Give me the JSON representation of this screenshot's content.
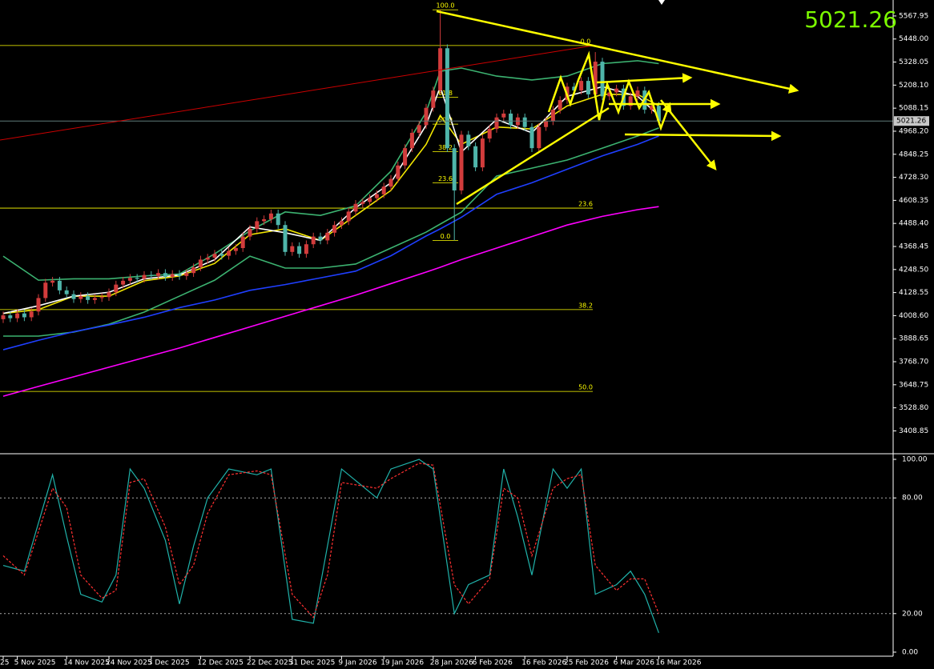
{
  "chart_data": {
    "type": "candlestick",
    "categories": [
      "25",
      null,
      "5 Nov 2025",
      null,
      null,
      null,
      null,
      null,
      null,
      "14 Nov 2025",
      null,
      null,
      null,
      null,
      null,
      "24 Nov 2025",
      null,
      null,
      null,
      null,
      null,
      "3 Dec 2025",
      null,
      null,
      null,
      null,
      null,
      null,
      "12 Dec 2025",
      null,
      null,
      null,
      null,
      null,
      null,
      "22 Dec 2025",
      null,
      null,
      null,
      null,
      null,
      "31 Dec 2025",
      null,
      null,
      null,
      null,
      null,
      null,
      "9 Jan 2026",
      null,
      null,
      null,
      null,
      null,
      "19 Jan 2026",
      null,
      null,
      null,
      null,
      null,
      null,
      "28 Jan 2026",
      null,
      null,
      null,
      null,
      null,
      "6 Feb 2026",
      null,
      null,
      null,
      null,
      null,
      null,
      "16 Feb 2026",
      null,
      null,
      null,
      null,
      null,
      "25 Feb 2026",
      null,
      null,
      null,
      null,
      null,
      null,
      "6 Mar 2026",
      null,
      null,
      null,
      null,
      null,
      "16 Mar 2026"
    ],
    "candles": {
      "up_color": "#d23c3c",
      "down_color": "#4fb5aa",
      "open": [
        3990,
        4010,
        3995,
        4020,
        4000,
        4030,
        4100,
        4180,
        4190,
        4140,
        4120,
        4095,
        4110,
        4090,
        4100,
        4105,
        4130,
        4170,
        4190,
        4205,
        4200,
        4220,
        4215,
        4230,
        4210,
        4225,
        4215,
        4230,
        4260,
        4300,
        4310,
        4330,
        4320,
        4345,
        4360,
        4420,
        4460,
        4500,
        4510,
        4540,
        4480,
        4340,
        4370,
        4330,
        4380,
        4420,
        4400,
        4440,
        4480,
        4500,
        4550,
        4590,
        4600,
        4620,
        4640,
        4680,
        4720,
        4790,
        4880,
        4960,
        5000,
        5090,
        5180,
        5400,
        4880,
        4660,
        4950,
        4890,
        4780,
        4930,
        4980,
        5040,
        5060,
        5000,
        5040,
        4990,
        4880,
        4990,
        5020,
        5080,
        5130,
        5200,
        5180,
        5230,
        5160,
        5330,
        5150,
        5170,
        5190,
        5100,
        5150,
        5180,
        5080,
        5100
      ],
      "high": [
        4030,
        4030,
        4040,
        4040,
        4050,
        4120,
        4200,
        4210,
        4210,
        4160,
        4140,
        4130,
        4130,
        4120,
        4125,
        4150,
        4190,
        4210,
        4225,
        4225,
        4240,
        4240,
        4250,
        4250,
        4245,
        4245,
        4250,
        4280,
        4320,
        4330,
        4350,
        4350,
        4365,
        4380,
        4440,
        4480,
        4520,
        4530,
        4560,
        4560,
        4500,
        4390,
        4390,
        4400,
        4440,
        4440,
        4460,
        4500,
        4520,
        4570,
        4610,
        4620,
        4640,
        4660,
        4700,
        4740,
        4810,
        4900,
        4980,
        5020,
        5110,
        5200,
        5600,
        5420,
        4900,
        4970,
        4970,
        4910,
        4950,
        5000,
        5060,
        5080,
        5080,
        5060,
        5060,
        5010,
        5010,
        5040,
        5100,
        5150,
        5220,
        5220,
        5250,
        5250,
        5380,
        5350,
        5190,
        5210,
        5210,
        5170,
        5200,
        5200,
        5120,
        5120
      ],
      "low": [
        3970,
        3975,
        3975,
        3980,
        3980,
        4010,
        4080,
        4160,
        4120,
        4100,
        4075,
        4075,
        4070,
        4070,
        4080,
        4085,
        4110,
        4150,
        4170,
        4180,
        4180,
        4195,
        4195,
        4190,
        4190,
        4195,
        4195,
        4210,
        4240,
        4280,
        4290,
        4300,
        4300,
        4325,
        4340,
        4400,
        4440,
        4480,
        4490,
        4460,
        4320,
        4320,
        4310,
        4310,
        4360,
        4380,
        4380,
        4420,
        4460,
        4480,
        4530,
        4570,
        4580,
        4600,
        4620,
        4660,
        4700,
        4770,
        4860,
        4940,
        4980,
        5070,
        5160,
        4860,
        4400,
        4640,
        4870,
        4760,
        4760,
        4910,
        4960,
        5020,
        4980,
        4980,
        4970,
        4860,
        4860,
        4970,
        5000,
        5060,
        5110,
        5160,
        5160,
        5140,
        5140,
        5130,
        5130,
        5150,
        5080,
        5080,
        5130,
        5060,
        5060,
        5000
      ],
      "close": [
        4010,
        3995,
        4020,
        4000,
        4030,
        4100,
        4180,
        4190,
        4140,
        4120,
        4095,
        4110,
        4090,
        4100,
        4105,
        4130,
        4170,
        4190,
        4205,
        4200,
        4220,
        4215,
        4230,
        4210,
        4225,
        4215,
        4230,
        4260,
        4300,
        4310,
        4330,
        4320,
        4345,
        4360,
        4420,
        4460,
        4500,
        4510,
        4540,
        4480,
        4340,
        4370,
        4330,
        4380,
        4420,
        4400,
        4440,
        4480,
        4500,
        4550,
        4590,
        4600,
        4620,
        4640,
        4680,
        4720,
        4790,
        4880,
        4960,
        5000,
        5090,
        5180,
        5400,
        4880,
        4660,
        4950,
        4890,
        4780,
        4930,
        4980,
        5040,
        5060,
        5000,
        5040,
        4990,
        4880,
        4990,
        5020,
        5080,
        5130,
        5200,
        5180,
        5230,
        5160,
        5330,
        5150,
        5170,
        5190,
        5100,
        5150,
        5180,
        5080,
        5100,
        5021.26
      ]
    },
    "ylim": [
      3294,
      5651
    ],
    "yticks": [
      5567.95,
      {
        "value": 5448,
        "label": "5448.00"
      },
      5328.05,
      {
        "value": 5208.1,
        "label": "5208.10"
      },
      5088.15,
      {
        "value": 4968.2,
        "label": "4968.20"
      },
      4848.25,
      {
        "value": 4728.3,
        "label": "4728.30"
      },
      4608.35,
      {
        "value": 4488.4,
        "label": "4488.40"
      },
      4368.45,
      {
        "value": 4248.5,
        "label": "4248.50"
      },
      4128.55,
      {
        "value": 4008.6,
        "label": "4008.60"
      },
      3888.65,
      {
        "value": 3768.7,
        "label": "3768.70"
      },
      3648.75,
      {
        "value": 3528.8,
        "label": "3528.80"
      },
      3408.85
    ],
    "indicators": [
      {
        "color": "#3cb371",
        "x": [
          0,
          5,
          10,
          15,
          20,
          25,
          30,
          35,
          40,
          45,
          50,
          55,
          60,
          62,
          65,
          70,
          75,
          80,
          85,
          90,
          93
        ],
        "values": [
          4318,
          4193,
          4200,
          4200,
          4215,
          4225,
          4330,
          4450,
          4548,
          4530,
          4580,
          4760,
          5068,
          5280,
          5297,
          5255,
          5235,
          5255,
          5320,
          5335,
          5320
        ]
      },
      {
        "color": "#3cb371",
        "x": [
          0,
          5,
          10,
          15,
          20,
          25,
          30,
          35,
          40,
          45,
          50,
          55,
          60,
          62,
          65,
          70,
          75,
          80,
          85,
          90,
          93
        ],
        "values": [
          3902,
          3902,
          3923,
          3964,
          4027,
          4110,
          4193,
          4318,
          4256,
          4256,
          4277,
          4360,
          4443,
          4485,
          4547,
          4735,
          4776,
          4818,
          4880,
          4943,
          4985
        ]
      },
      {
        "color": "#1f3fff",
        "x": [
          0,
          5,
          10,
          15,
          20,
          25,
          30,
          35,
          40,
          45,
          50,
          55,
          60,
          62,
          65,
          70,
          75,
          80,
          85,
          90,
          93
        ],
        "values": [
          3831,
          3880,
          3925,
          3960,
          4000,
          4050,
          4090,
          4140,
          4170,
          4205,
          4240,
          4320,
          4423,
          4460,
          4520,
          4640,
          4700,
          4770,
          4840,
          4900,
          4943
        ]
      },
      {
        "color": "#ff00ff",
        "x": [
          0,
          5,
          10,
          15,
          20,
          25,
          30,
          35,
          40,
          45,
          50,
          55,
          60,
          62,
          65,
          70,
          75,
          80,
          85,
          90,
          93
        ],
        "values": [
          3589,
          3640,
          3690,
          3740,
          3790,
          3840,
          3895,
          3950,
          4005,
          4060,
          4115,
          4175,
          4235,
          4260,
          4300,
          4360,
          4420,
          4480,
          4525,
          4560,
          4576
        ]
      },
      {
        "color": "#f2e600",
        "x": [
          0,
          5,
          10,
          15,
          20,
          25,
          30,
          35,
          40,
          45,
          50,
          55,
          60,
          62,
          65,
          70,
          75,
          80,
          85,
          90,
          93
        ],
        "values": [
          4020,
          4040,
          4110,
          4110,
          4190,
          4215,
          4280,
          4430,
          4460,
          4400,
          4530,
          4660,
          4900,
          5050,
          4900,
          4990,
          4980,
          5100,
          5160,
          5160,
          5100
        ]
      },
      {
        "color": "#ffffff",
        "x": [
          0,
          5,
          10,
          15,
          20,
          25,
          30,
          35,
          40,
          45,
          50,
          55,
          60,
          62,
          65,
          70,
          75,
          80,
          85,
          90,
          93
        ],
        "values": [
          4020,
          4060,
          4110,
          4130,
          4200,
          4220,
          4300,
          4470,
          4440,
          4400,
          4570,
          4700,
          5000,
          5200,
          4860,
          5030,
          4960,
          5150,
          5200,
          5150,
          5050
        ]
      }
    ],
    "fibo_color": "#ffff00",
    "fibo_long": [
      {
        "label": "0.0",
        "price": 5414
      },
      {
        "label": "23.6",
        "price": 4568
      },
      {
        "label": "38.2",
        "price": 4040
      },
      {
        "label": "50.0",
        "price": 3614
      }
    ],
    "fibo_short": [
      {
        "label": "100.0",
        "price": 5600
      },
      {
        "label": "61.8",
        "price": 5145
      },
      {
        "label": "50.0",
        "price": 5005
      },
      {
        "label": "38.2",
        "price": 4862
      },
      {
        "label": "23.6",
        "price": 4700
      },
      {
        "label": "0.0",
        "price": 4400
      }
    ],
    "oscillator": {
      "type": "line",
      "ylim": [
        -2.1,
        102.5
      ],
      "yticks": [
        {
          "value": 100,
          "label": "100.00"
        },
        {
          "value": 80,
          "label": "80.00"
        },
        {
          "value": 20,
          "label": "20.00"
        },
        {
          "value": 0,
          "label": "0.00"
        }
      ],
      "series": [
        {
          "color": "#20b2aa",
          "x": [
            0,
            3,
            7,
            9,
            11,
            14,
            16,
            18,
            20,
            23,
            25,
            27,
            29,
            32,
            36,
            38,
            41,
            44,
            46,
            48,
            53,
            55,
            59,
            61,
            64,
            66,
            69,
            71,
            73,
            75,
            78,
            80,
            82,
            84,
            87,
            89,
            91,
            93
          ],
          "values": [
            45,
            42,
            92,
            60,
            30,
            26,
            40,
            95,
            85,
            58,
            25,
            55,
            80,
            95,
            92,
            95,
            17,
            15,
            55,
            95,
            80,
            95,
            100,
            95,
            20,
            35,
            40,
            95,
            70,
            40,
            95,
            85,
            95,
            30,
            35,
            42,
            30,
            10
          ]
        },
        {
          "color": "#ff3030",
          "dashed": true,
          "x": [
            0,
            3,
            7,
            9,
            11,
            14,
            16,
            18,
            20,
            23,
            25,
            27,
            29,
            32,
            36,
            38,
            41,
            44,
            46,
            48,
            53,
            55,
            59,
            61,
            64,
            66,
            69,
            71,
            73,
            75,
            78,
            80,
            82,
            84,
            87,
            89,
            91,
            93
          ],
          "values": [
            50,
            40,
            85,
            75,
            40,
            28,
            32,
            88,
            90,
            65,
            35,
            45,
            72,
            92,
            94,
            92,
            30,
            18,
            40,
            88,
            85,
            90,
            98,
            97,
            35,
            25,
            38,
            85,
            80,
            50,
            85,
            90,
            92,
            45,
            32,
            38,
            38,
            20
          ]
        }
      ]
    }
  }
}
